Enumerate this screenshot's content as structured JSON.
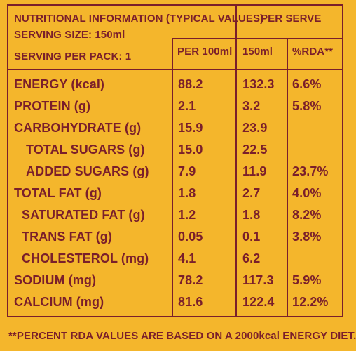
{
  "header": {
    "title": "NUTRITIONAL INFORMATION (TYPICAL VALUES)",
    "serving_size": "SERVING SIZE: 150ml",
    "serving_per_pack": "SERVING PER PACK: 1",
    "per_serve": "PER SERVE",
    "per_100ml": "PER 100ml",
    "col_150ml": "150ml",
    "col_rda": "%RDA**"
  },
  "rows": [
    {
      "name": "ENERGY (kcal)",
      "per100": "88.2",
      "per150": "132.3",
      "rda": "6.6%"
    },
    {
      "name": "PROTEIN (g)",
      "per100": "2.1",
      "per150": "3.2",
      "rda": "5.8%"
    },
    {
      "name": "CARBOHYDRATE (g)",
      "per100": "15.9",
      "per150": "23.9",
      "rda": ""
    },
    {
      "name": "TOTAL SUGARS (g)",
      "per100": "15.0",
      "per150": "22.5",
      "rda": ""
    },
    {
      "name": "ADDED SUGARS (g)",
      "per100": "7.9",
      "per150": "11.9",
      "rda": "23.7%"
    },
    {
      "name": "TOTAL FAT (g)",
      "per100": "1.8",
      "per150": "2.7",
      "rda": "4.0%"
    },
    {
      "name": "SATURATED FAT (g)",
      "per100": "1.2",
      "per150": "1.8",
      "rda": "8.2%"
    },
    {
      "name": "TRANS FAT (g)",
      "per100": "0.05",
      "per150": "0.1",
      "rda": "3.8%"
    },
    {
      "name": "CHOLESTEROL (mg)",
      "per100": "4.1",
      "per150": "6.2",
      "rda": ""
    },
    {
      "name": "SODIUM (mg)",
      "per100": "78.2",
      "per150": "117.3",
      "rda": "5.9%"
    },
    {
      "name": "CALCIUM (mg)",
      "per100": "81.6",
      "per150": "122.4",
      "rda": "12.2%"
    }
  ],
  "footnote": "**PERCENT RDA VALUES ARE BASED ON A 2000kcal ENERGY DIET."
}
